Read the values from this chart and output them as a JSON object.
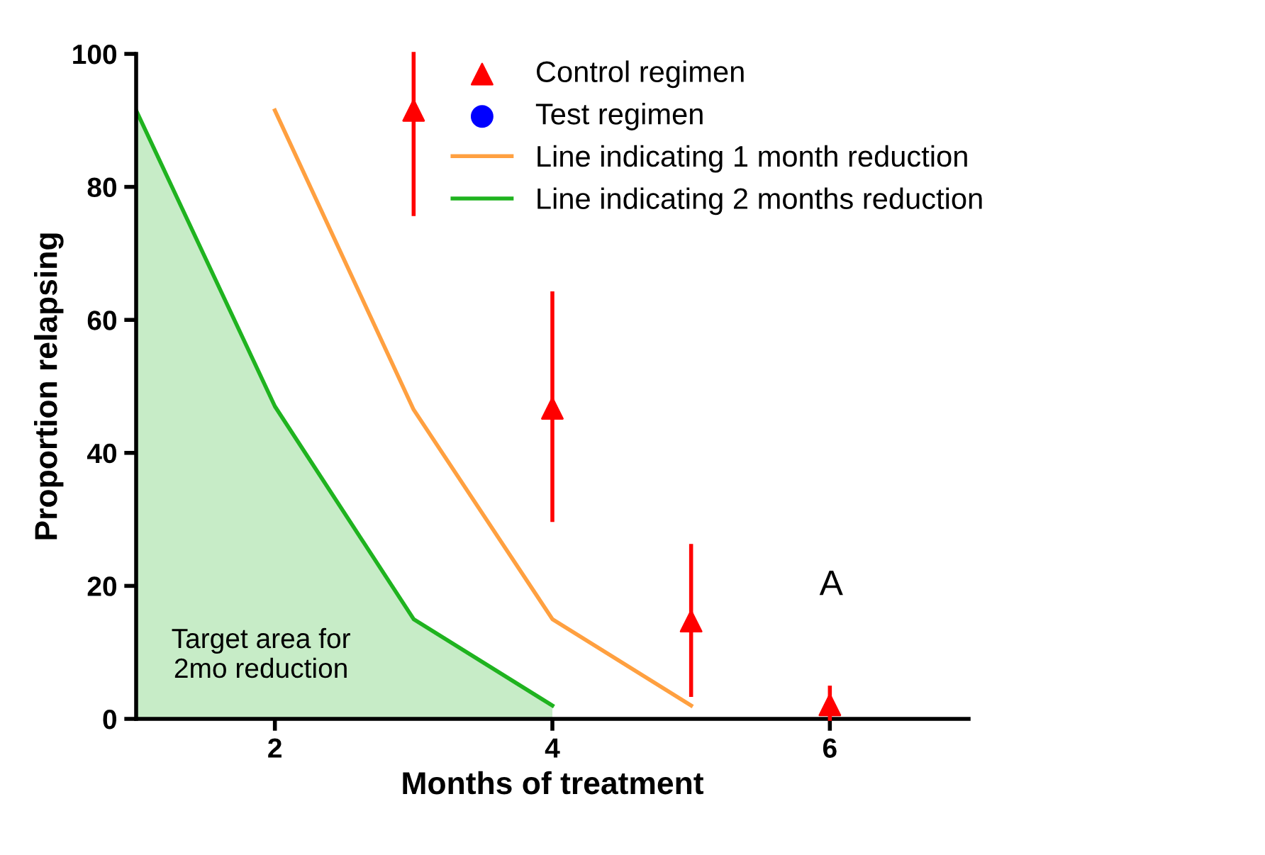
{
  "chart_data": {
    "type": "scatter",
    "xlabel": "Months of treatment",
    "ylabel": "Proportion relapsing",
    "xlim": [
      1,
      7
    ],
    "ylim": [
      0,
      100
    ],
    "xticks": [
      2,
      4,
      6
    ],
    "yticks": [
      0,
      20,
      40,
      60,
      80,
      100
    ],
    "grid": false,
    "legend": "top right",
    "series": [
      {
        "name": "Control regimen",
        "marker": "triangle",
        "color": "#ff0000",
        "x": [
          3,
          4,
          5,
          6
        ],
        "values": [
          91.5,
          46.7,
          14.7,
          2.1
        ],
        "errors": [
          [
            75.9,
            100
          ],
          [
            29.9,
            64
          ],
          [
            3.6,
            26
          ],
          [
            0,
            4.7
          ]
        ]
      },
      {
        "name": "Test regimen",
        "marker": "circle",
        "color": "#0000ff"
      },
      {
        "name": "Line indicating 1 month reduction",
        "type": "line",
        "marker": "none",
        "color": "#ffa040",
        "x": [
          2,
          3,
          4,
          5
        ],
        "values": [
          91.5,
          46.5,
          15,
          2
        ]
      },
      {
        "name": "Line indicating 2 months reduction",
        "type": "area",
        "marker": "none",
        "color": "#1fb31f",
        "x": [
          1,
          2,
          3,
          4
        ],
        "values": [
          91.5,
          47,
          15,
          2
        ]
      }
    ],
    "annotations": [
      "A",
      "Target area for\n2mo reduction"
    ]
  }
}
